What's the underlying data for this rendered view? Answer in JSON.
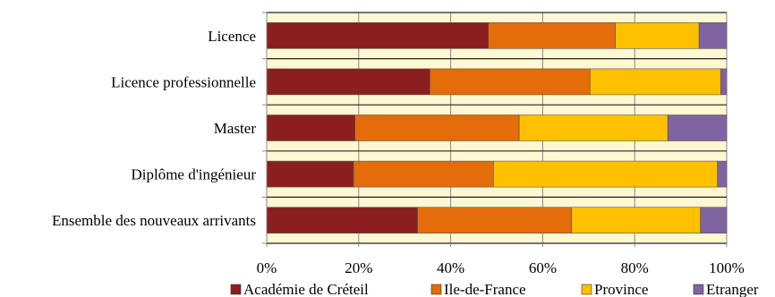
{
  "chart_data": {
    "type": "bar",
    "orientation": "horizontal",
    "stacked": "percent",
    "categories": [
      "Licence",
      "Licence professionnelle",
      "Master",
      "Diplôme d'ingénieur",
      "Ensemble des nouveaux arrivants"
    ],
    "series": [
      {
        "name": "Académie de Créteil",
        "color": "#8B1E1E",
        "values": [
          48.2,
          35.5,
          19.2,
          18.9,
          32.8
        ]
      },
      {
        "name": "Ile-de-France",
        "color": "#E46C0A",
        "values": [
          27.6,
          34.8,
          35.7,
          30.4,
          33.5
        ]
      },
      {
        "name": "Province",
        "color": "#FFC000",
        "values": [
          18.2,
          28.4,
          32.3,
          48.7,
          28.0
        ]
      },
      {
        "name": "Etranger",
        "color": "#8064A2",
        "values": [
          6.0,
          1.3,
          12.8,
          2.0,
          5.7
        ]
      }
    ],
    "x_ticks": [
      "0%",
      "20%",
      "40%",
      "60%",
      "80%",
      "100%"
    ],
    "xlim": [
      0,
      100
    ],
    "plot_background": "#FFF8D2",
    "grid": true,
    "legend_position": "bottom"
  }
}
